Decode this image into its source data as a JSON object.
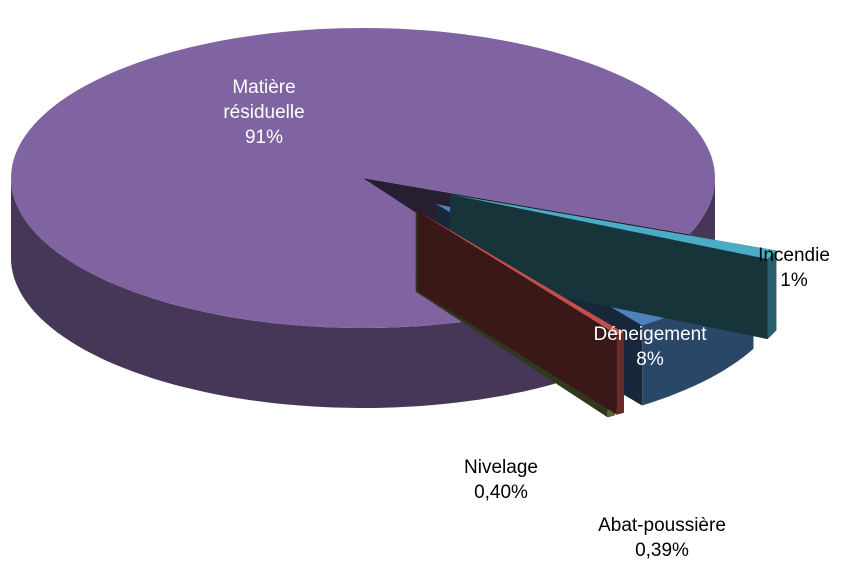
{
  "chart_data": {
    "type": "pie3d",
    "categories": [
      "Incendie",
      "Déneigement",
      "Abat-poussière",
      "Nivelage",
      "Matière résiduelle"
    ],
    "values": [
      1,
      8,
      0.39,
      0.4,
      91
    ],
    "value_labels": [
      "1%",
      "8%",
      "0,39%",
      "0,40%",
      "91%"
    ],
    "colors": [
      "#4bacc6",
      "#4f81bd",
      "#c0504d",
      "#9bbb59",
      "#8064a2"
    ]
  }
}
